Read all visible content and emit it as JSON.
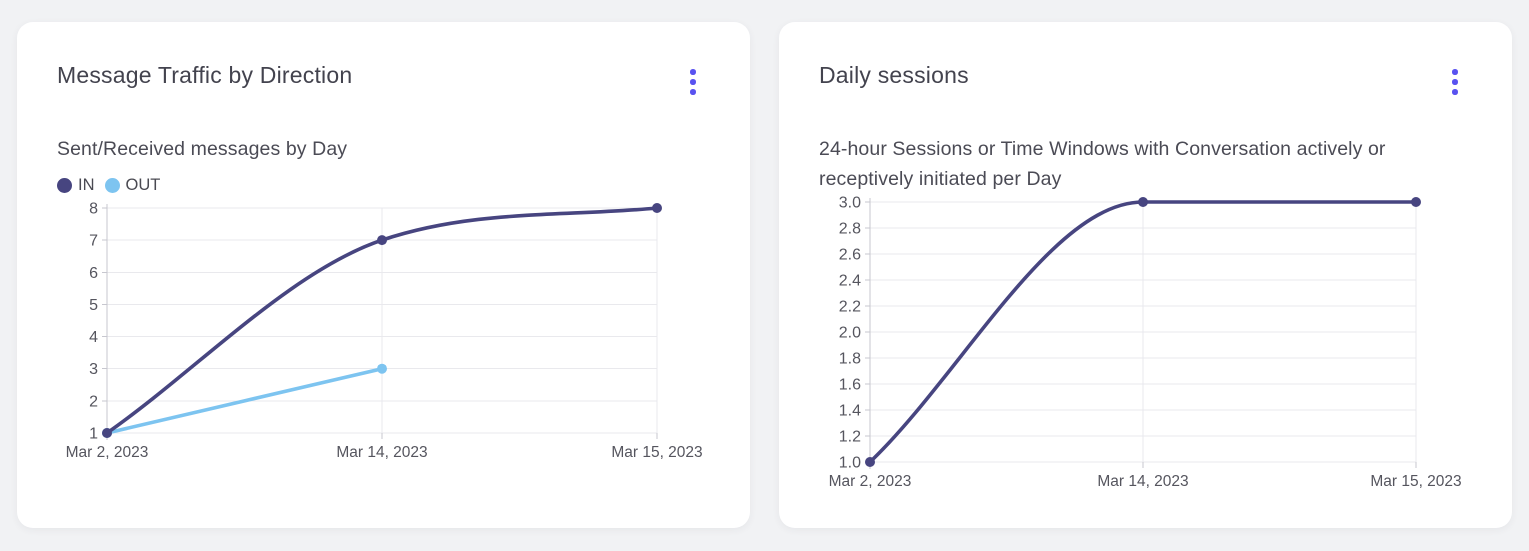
{
  "icons": {
    "more_options": "kebab-vertical-dots-icon"
  },
  "colors": {
    "accent": "#5952f0",
    "page_bg": "#f1f2f4",
    "card_bg": "#ffffff",
    "grid": "#e9e9ed",
    "axis": "#c7c7cf",
    "tick_text": "#55555e",
    "title_text": "#43434e",
    "subtitle_text": "#4b4b55",
    "legend_text": "#4a4a52",
    "series_in": "#474580",
    "series_out": "#7dc4f0"
  },
  "chart_data": [
    {
      "type": "line",
      "title": "Message Traffic by Direction",
      "subtitle": "Sent/Received messages by Day",
      "x": [
        "Mar 2, 2023",
        "Mar 14, 2023",
        "Mar 15, 2023"
      ],
      "series": [
        {
          "name": "IN",
          "color": "#474580",
          "values": [
            1,
            7,
            8
          ]
        },
        {
          "name": "OUT",
          "color": "#7dc4f0",
          "values": [
            1,
            3,
            null
          ]
        }
      ],
      "ylim": [
        1,
        8
      ],
      "ytick_step": 1,
      "y_decimals": 0,
      "grid": true,
      "legend_position": "top-left",
      "curve": "monotone"
    },
    {
      "type": "line",
      "title": "Daily sessions",
      "subtitle": "24-hour Sessions or Time Windows with Conversation actively or receptively initiated per Day",
      "x": [
        "Mar 2, 2023",
        "Mar 14, 2023",
        "Mar 15, 2023"
      ],
      "series": [
        {
          "color": "#474580",
          "values": [
            1,
            3,
            3
          ]
        }
      ],
      "ylim": [
        1,
        3
      ],
      "ytick_step": 0.2,
      "y_decimals": 1,
      "grid": true,
      "legend_position": "none",
      "curve": "monotone"
    }
  ]
}
